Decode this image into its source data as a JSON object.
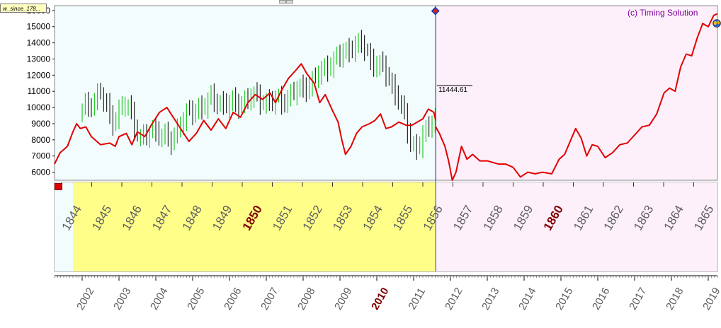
{
  "window_tab": "w_since_178...",
  "copyright": "(c) Timing Solution",
  "price_label": "11444.61",
  "colors": {
    "history_bg": "#f2fcfd",
    "future_bg": "#fdf0fa",
    "band_yellow": "#fffe88",
    "line_red": "#e00000",
    "up_bar": "#00c000",
    "down_bar": "#000000",
    "highlight_year": "#800000",
    "year_text": "#606060"
  },
  "chart_data": {
    "type": "line",
    "title": "",
    "ylim": [
      5500,
      16300
    ],
    "y_ticks": [
      6000,
      7000,
      8000,
      9000,
      10000,
      11000,
      12000,
      13000,
      14000,
      15000,
      16000
    ],
    "x_range_modern": [
      2001.25,
      2019.25
    ],
    "cycle_shift_years": 158,
    "cursor_year": 2011.6,
    "axis_top_years": [
      "1844",
      "1845",
      "1846",
      "1847",
      "1848",
      "1849",
      "1850",
      "1851",
      "1852",
      "1853",
      "1854",
      "1855",
      "1856",
      "1857",
      "1858",
      "1859",
      "1860",
      "1861",
      "1862",
      "1863",
      "1864",
      "1865"
    ],
    "axis_top_highlight": "1850",
    "axis_top_highlight_2": "1860",
    "axis_bottom_years": [
      "2002",
      "2003",
      "2004",
      "2005",
      "2006",
      "2007",
      "2008",
      "2009",
      "2010",
      "2011",
      "2012",
      "2013",
      "2014",
      "2015",
      "2016",
      "2017",
      "2018",
      "2019"
    ],
    "axis_bottom_highlight": "2010",
    "series": [
      {
        "type": "line",
        "points": [
          [
            2001.25,
            6500
          ],
          [
            2001.4,
            7200
          ],
          [
            2001.6,
            7600
          ],
          [
            2001.75,
            8500
          ],
          [
            2001.85,
            9000
          ],
          [
            2001.95,
            8700
          ],
          [
            2002.1,
            8800
          ],
          [
            2002.25,
            8200
          ],
          [
            2002.5,
            7700
          ],
          [
            2002.75,
            7800
          ],
          [
            2002.9,
            7600
          ],
          [
            2003.0,
            8200
          ],
          [
            2003.2,
            8400
          ],
          [
            2003.35,
            7700
          ],
          [
            2003.5,
            8500
          ],
          [
            2003.7,
            8200
          ],
          [
            2003.9,
            9000
          ],
          [
            2004.1,
            9700
          ],
          [
            2004.3,
            10000
          ],
          [
            2004.5,
            9300
          ],
          [
            2004.7,
            8600
          ],
          [
            2004.9,
            7900
          ],
          [
            2005.1,
            8400
          ],
          [
            2005.3,
            9200
          ],
          [
            2005.5,
            8600
          ],
          [
            2005.7,
            9300
          ],
          [
            2005.9,
            8700
          ],
          [
            2006.1,
            9700
          ],
          [
            2006.3,
            9400
          ],
          [
            2006.5,
            10300
          ],
          [
            2006.7,
            10800
          ],
          [
            2006.9,
            10500
          ],
          [
            2007.1,
            10900
          ],
          [
            2007.25,
            10300
          ],
          [
            2007.4,
            11000
          ],
          [
            2007.6,
            11800
          ],
          [
            2007.8,
            12300
          ],
          [
            2007.95,
            12700
          ],
          [
            2008.1,
            12100
          ],
          [
            2008.3,
            11500
          ],
          [
            2008.45,
            10300
          ],
          [
            2008.6,
            10800
          ],
          [
            2008.8,
            9800
          ],
          [
            2008.95,
            9100
          ],
          [
            2009.05,
            8000
          ],
          [
            2009.15,
            7100
          ],
          [
            2009.3,
            7600
          ],
          [
            2009.45,
            8400
          ],
          [
            2009.6,
            8800
          ],
          [
            2009.8,
            9000
          ],
          [
            2009.95,
            9200
          ],
          [
            2010.1,
            9600
          ],
          [
            2010.25,
            8700
          ],
          [
            2010.4,
            8800
          ],
          [
            2010.6,
            9100
          ],
          [
            2010.8,
            8900
          ],
          [
            2010.95,
            8900
          ],
          [
            2011.1,
            9100
          ],
          [
            2011.25,
            9300
          ],
          [
            2011.4,
            9900
          ],
          [
            2011.55,
            9700
          ],
          [
            2011.6,
            9200
          ]
        ]
      },
      {
        "type": "line",
        "points": [
          [
            2011.6,
            8800
          ],
          [
            2011.7,
            8400
          ],
          [
            2011.85,
            7600
          ],
          [
            2011.95,
            6700
          ],
          [
            2012.05,
            5500
          ],
          [
            2012.15,
            6000
          ],
          [
            2012.3,
            7600
          ],
          [
            2012.45,
            6800
          ],
          [
            2012.6,
            7100
          ],
          [
            2012.8,
            6700
          ],
          [
            2013.0,
            6700
          ],
          [
            2013.3,
            6500
          ],
          [
            2013.5,
            6500
          ],
          [
            2013.7,
            6300
          ],
          [
            2013.9,
            5700
          ],
          [
            2014.1,
            6000
          ],
          [
            2014.3,
            5900
          ],
          [
            2014.5,
            6000
          ],
          [
            2014.75,
            5900
          ],
          [
            2014.95,
            6800
          ],
          [
            2015.1,
            7100
          ],
          [
            2015.25,
            7900
          ],
          [
            2015.4,
            8700
          ],
          [
            2015.55,
            8100
          ],
          [
            2015.7,
            7000
          ],
          [
            2015.85,
            7700
          ],
          [
            2016.0,
            7600
          ],
          [
            2016.2,
            6900
          ],
          [
            2016.4,
            7200
          ],
          [
            2016.6,
            7700
          ],
          [
            2016.8,
            7800
          ],
          [
            2017.0,
            8300
          ],
          [
            2017.2,
            8800
          ],
          [
            2017.4,
            8900
          ],
          [
            2017.6,
            9600
          ],
          [
            2017.8,
            10900
          ],
          [
            2017.95,
            11200
          ],
          [
            2018.1,
            11000
          ],
          [
            2018.25,
            12500
          ],
          [
            2018.4,
            13300
          ],
          [
            2018.55,
            13200
          ],
          [
            2018.7,
            14300
          ],
          [
            2018.85,
            15200
          ],
          [
            2019.0,
            15000
          ],
          [
            2019.15,
            15700
          ],
          [
            2019.25,
            15800
          ]
        ]
      }
    ]
  }
}
